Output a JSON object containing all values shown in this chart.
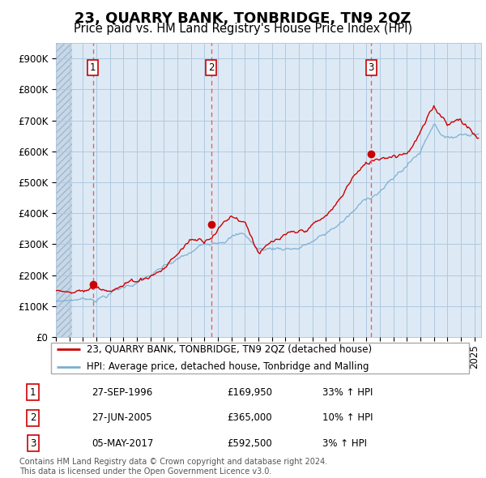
{
  "title": "23, QUARRY BANK, TONBRIDGE, TN9 2QZ",
  "subtitle": "Price paid vs. HM Land Registry's House Price Index (HPI)",
  "ylabel_ticks": [
    "£0",
    "£100K",
    "£200K",
    "£300K",
    "£400K",
    "£500K",
    "£600K",
    "£700K",
    "£800K",
    "£900K"
  ],
  "ytick_values": [
    0,
    100000,
    200000,
    300000,
    400000,
    500000,
    600000,
    700000,
    800000,
    900000
  ],
  "ylim": [
    0,
    950000
  ],
  "xlim_start": 1994.0,
  "xlim_end": 2025.5,
  "hatch_end": 1995.2,
  "sale_dates": [
    1996.74,
    2005.49,
    2017.35
  ],
  "sale_prices": [
    169950,
    365000,
    592500
  ],
  "sale_labels": [
    "1",
    "2",
    "3"
  ],
  "vline_color": "#e86060",
  "sale_color": "#cc0000",
  "hpi_color": "#7bafd4",
  "chart_bg": "#ddeaf5",
  "hatch_color": "#c8d8e8",
  "grid_color": "#b0c8e0",
  "legend_entries": [
    "23, QUARRY BANK, TONBRIDGE, TN9 2QZ (detached house)",
    "HPI: Average price, detached house, Tonbridge and Malling"
  ],
  "table_rows": [
    {
      "num": "1",
      "date": "27-SEP-1996",
      "price": "£169,950",
      "hpi": "33% ↑ HPI"
    },
    {
      "num": "2",
      "date": "27-JUN-2005",
      "price": "£365,000",
      "hpi": "10% ↑ HPI"
    },
    {
      "num": "3",
      "date": "05-MAY-2017",
      "price": "£592,500",
      "hpi": "3% ↑ HPI"
    }
  ],
  "footnote": "Contains HM Land Registry data © Crown copyright and database right 2024.\nThis data is licensed under the Open Government Licence v3.0.",
  "title_fontsize": 13,
  "subtitle_fontsize": 10.5,
  "tick_fontsize": 8.5
}
